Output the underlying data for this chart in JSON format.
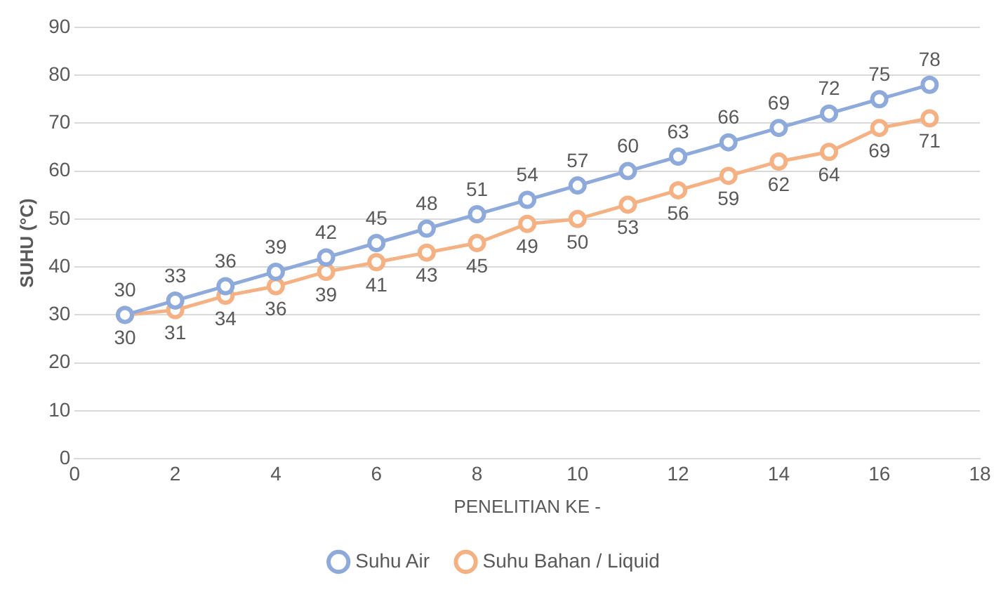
{
  "chart_data": {
    "type": "line",
    "xlabel": "PENELITIAN KE -",
    "ylabel": "SUHU (°C)",
    "x": [
      1,
      2,
      3,
      4,
      5,
      6,
      7,
      8,
      9,
      10,
      11,
      12,
      13,
      14,
      15,
      16,
      17
    ],
    "series": [
      {
        "name": "Suhu Air",
        "color": "#8eaadb",
        "values": [
          30,
          33,
          36,
          39,
          42,
          45,
          48,
          51,
          54,
          57,
          60,
          63,
          66,
          69,
          72,
          75,
          78
        ]
      },
      {
        "name": "Suhu Bahan / Liquid",
        "color": "#f4b183",
        "values": [
          30,
          31,
          34,
          36,
          39,
          41,
          43,
          45,
          49,
          50,
          53,
          56,
          59,
          62,
          64,
          69,
          71
        ]
      }
    ],
    "xlim": [
      0,
      18
    ],
    "xticks": [
      0,
      2,
      4,
      6,
      8,
      10,
      12,
      14,
      16,
      18
    ],
    "ylim": [
      0,
      90
    ],
    "yticks": [
      0,
      10,
      20,
      30,
      40,
      50,
      60,
      70,
      80,
      90
    ],
    "grid": "y",
    "legend": "bottom",
    "marker": "circle",
    "line_style": "solid",
    "data_labels": true
  }
}
